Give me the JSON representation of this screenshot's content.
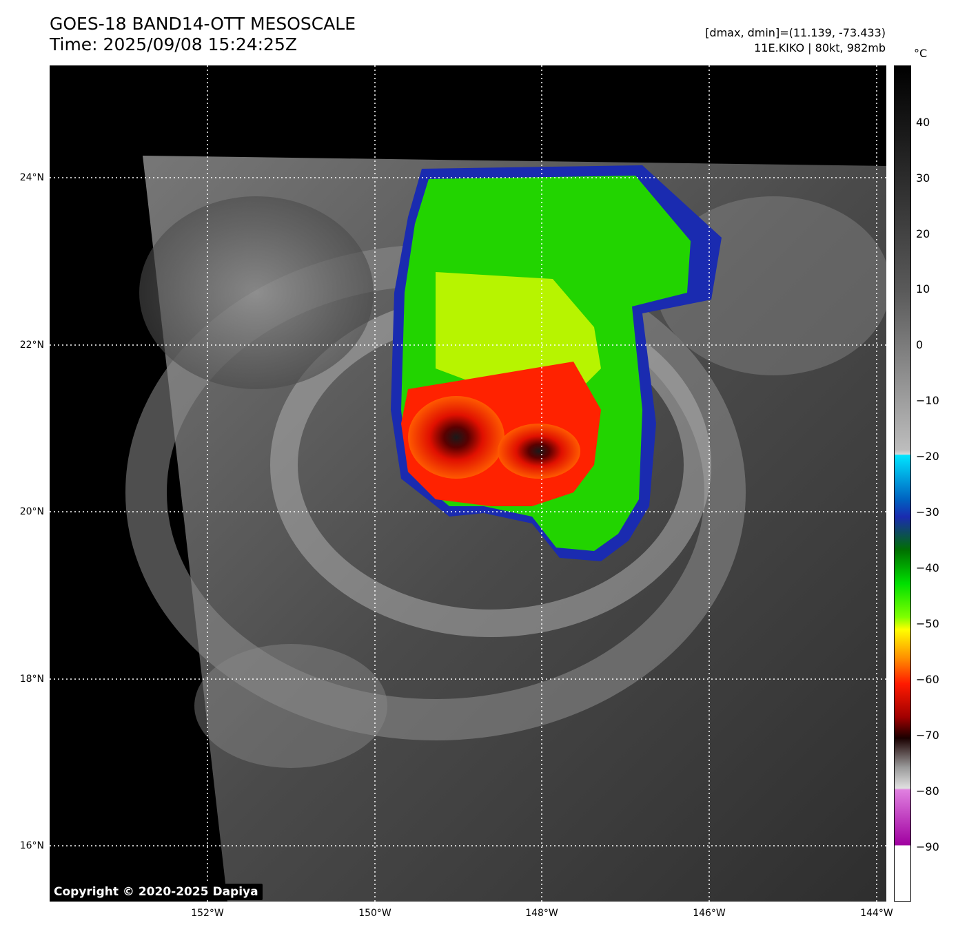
{
  "header": {
    "title_line1": "GOES-18 BAND14-OTT MESOSCALE",
    "title_line2": "Time: 2025/09/08 15:24:25Z",
    "dmax_dmin": "[dmax, dmin]=(11.139, -73.433)",
    "storm_info": "11E.KIKO | 80kt, 982mb"
  },
  "map": {
    "copyright": "Copyright © 2020-2025 Dapiya",
    "lat_labels": [
      "24°N",
      "22°N",
      "20°N",
      "18°N",
      "16°N"
    ],
    "lon_labels": [
      "152°W",
      "150°W",
      "148°W",
      "146°W",
      "144°W"
    ]
  },
  "colorbar": {
    "unit": "°C",
    "ticks": [
      "40",
      "30",
      "20",
      "10",
      "0",
      "−10",
      "−20",
      "−30",
      "−40",
      "−50",
      "−60",
      "−70",
      "−80",
      "−90"
    ],
    "colors": {
      "warm_top": "#000000",
      "gray_mid": "#bdbdbd",
      "cyan": "#00e5ff",
      "blue": "#1a2bb0",
      "green": "#00e000",
      "yellow": "#ffff00",
      "red": "#ff1a00",
      "dark_red": "#3a0000",
      "magenta": "#c040c0",
      "white": "#ffffff"
    }
  }
}
